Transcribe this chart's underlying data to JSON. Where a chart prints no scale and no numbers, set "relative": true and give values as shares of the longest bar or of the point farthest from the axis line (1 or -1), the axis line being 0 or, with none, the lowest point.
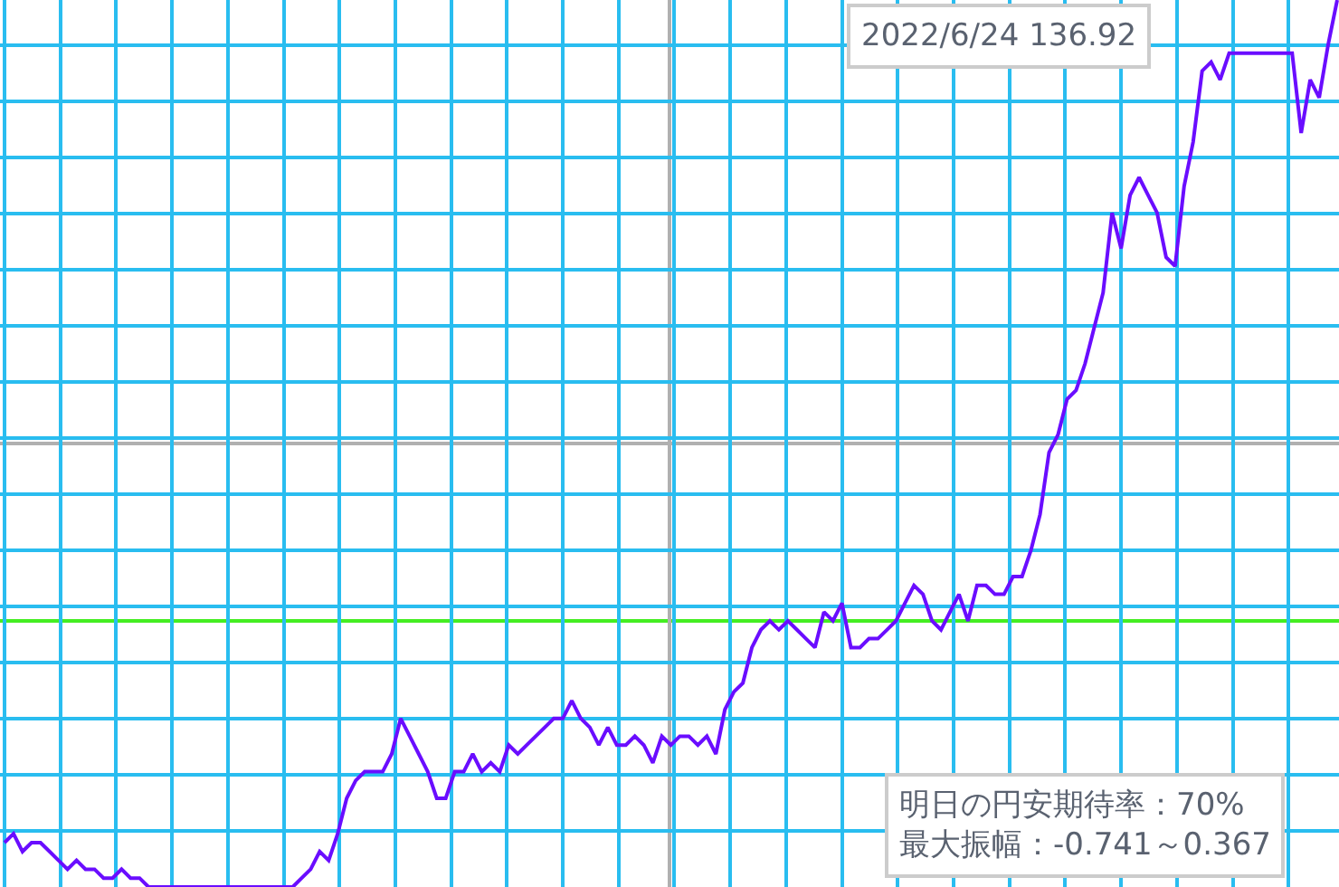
{
  "chart_data": {
    "type": "line",
    "relative": true,
    "grid": true,
    "categories": [
      null,
      null,
      null,
      null,
      null,
      null,
      null,
      null,
      null,
      null,
      null,
      null,
      null,
      null,
      null,
      null,
      null,
      null,
      null,
      null,
      null,
      null,
      null,
      null,
      null,
      null,
      null,
      null,
      null,
      null,
      null,
      null,
      null,
      null,
      null,
      null,
      null,
      null,
      null,
      null,
      null,
      null,
      null,
      null,
      null,
      null,
      null,
      null,
      null,
      null,
      null,
      null,
      null,
      null,
      null,
      null,
      null,
      null,
      null,
      null,
      null,
      null,
      null,
      null,
      null,
      null,
      null,
      null,
      null,
      null,
      null,
      null,
      null,
      null,
      null,
      null,
      null,
      null,
      null,
      null,
      null,
      null,
      null,
      null,
      null,
      null,
      null,
      null,
      null,
      null,
      null,
      null,
      null,
      null,
      null,
      null,
      null,
      null,
      null,
      null,
      null,
      null,
      null,
      null,
      null,
      null,
      null,
      null,
      null,
      null,
      null,
      null,
      null,
      null,
      null,
      null,
      null,
      null,
      null,
      null,
      null,
      null,
      null,
      null,
      null,
      null,
      null,
      null,
      null,
      null,
      null,
      null,
      null,
      null,
      null,
      null,
      null,
      null,
      null,
      null,
      null,
      null,
      null,
      null,
      null,
      null,
      null,
      null,
      null
    ],
    "series": [
      {
        "color": "#6a0dff",
        "values": [
          0.05,
          0.06,
          0.04,
          0.05,
          0.05,
          0.04,
          0.03,
          0.02,
          0.03,
          0.02,
          0.02,
          0.01,
          0.01,
          0.02,
          0.01,
          0.01,
          0,
          0,
          0,
          0,
          0,
          0,
          0,
          0,
          0,
          0,
          0,
          0,
          0,
          0,
          0,
          0,
          0,
          0.01,
          0.02,
          0.04,
          0.03,
          0.06,
          0.1,
          0.12,
          0.13,
          0.13,
          0.13,
          0.15,
          0.19,
          0.17,
          0.15,
          0.13,
          0.1,
          0.1,
          0.13,
          0.13,
          0.15,
          0.13,
          0.14,
          0.13,
          0.16,
          0.15,
          0.16,
          0.17,
          0.18,
          0.19,
          0.19,
          0.21,
          0.19,
          0.18,
          0.16,
          0.18,
          0.16,
          0.16,
          0.17,
          0.16,
          0.14,
          0.17,
          0.16,
          0.17,
          0.17,
          0.16,
          0.17,
          0.15,
          0.2,
          0.22,
          0.23,
          0.27,
          0.29,
          0.3,
          0.29,
          0.3,
          0.29,
          0.28,
          0.27,
          0.31,
          0.3,
          0.32,
          0.27,
          0.27,
          0.28,
          0.28,
          0.29,
          0.3,
          0.32,
          0.34,
          0.33,
          0.3,
          0.29,
          0.31,
          0.33,
          0.3,
          0.34,
          0.34,
          0.33,
          0.33,
          0.35,
          0.35,
          0.38,
          0.42,
          0.49,
          0.51,
          0.55,
          0.56,
          0.59,
          0.63,
          0.67,
          0.76,
          0.72,
          0.78,
          0.8,
          0.78,
          0.76,
          0.71,
          0.7,
          0.79,
          0.84,
          0.92,
          0.93,
          0.91,
          0.94,
          0.94,
          0.94,
          0.94,
          0.94,
          0.94,
          0.94,
          0.94,
          0.85,
          0.91,
          0.89,
          0.95,
          1
        ]
      }
    ],
    "ref_lines": [
      {
        "axis": "y",
        "value": 0.3,
        "color": "#44ee22"
      },
      {
        "axis": "y",
        "value": 0.5,
        "color": "#b0b0b0"
      }
    ],
    "annotations": [
      "2022/6/24 136.92",
      "明日の円安期待率：70%\n最大振幅：-0.741～0.367"
    ]
  }
}
